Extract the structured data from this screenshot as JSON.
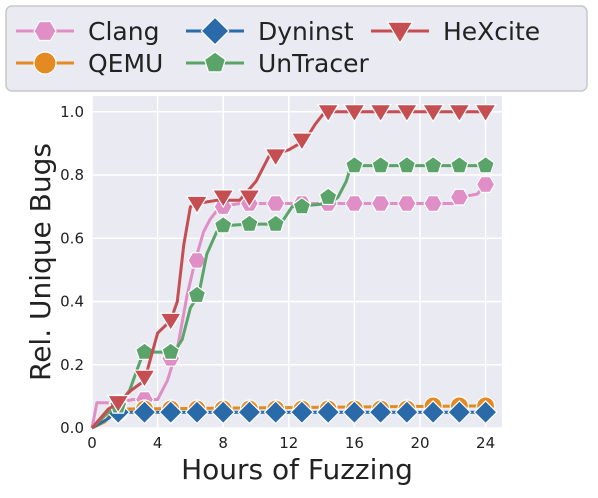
{
  "chart_data": {
    "type": "line",
    "xlabel": "Hours of Fuzzing",
    "ylabel": "Rel. Unique Bugs",
    "xlim": [
      0,
      25
    ],
    "ylim": [
      0,
      1.05
    ],
    "xticks": [
      0,
      4,
      8,
      12,
      16,
      20,
      24
    ],
    "yticks": [
      0.0,
      0.2,
      0.4,
      0.6,
      0.8,
      1.0
    ],
    "xtick_labels": [
      "0",
      "4",
      "8",
      "12",
      "16",
      "20",
      "24"
    ],
    "ytick_labels": [
      "0.0",
      "0.2",
      "0.4",
      "0.6",
      "0.8",
      "1.0"
    ],
    "grid": true,
    "legend_position": "top",
    "series": [
      {
        "name": "Clang",
        "color": "#e08fc6",
        "marker": "hexagon",
        "line": [
          [
            0,
            0.0
          ],
          [
            0.3,
            0.08
          ],
          [
            1.5,
            0.08
          ],
          [
            2.5,
            0.09
          ],
          [
            4.0,
            0.09
          ],
          [
            4.6,
            0.15
          ],
          [
            5.2,
            0.25
          ],
          [
            5.8,
            0.42
          ],
          [
            6.3,
            0.53
          ],
          [
            6.8,
            0.62
          ],
          [
            7.2,
            0.66
          ],
          [
            7.8,
            0.7
          ],
          [
            9.0,
            0.71
          ],
          [
            12.0,
            0.71
          ],
          [
            14.0,
            0.71
          ],
          [
            16.0,
            0.71
          ],
          [
            22.0,
            0.71
          ],
          [
            22.5,
            0.73
          ],
          [
            23.5,
            0.74
          ],
          [
            24.0,
            0.77
          ]
        ],
        "markers": [
          [
            1.6,
            0.08
          ],
          [
            3.2,
            0.09
          ],
          [
            4.8,
            0.22
          ],
          [
            6.4,
            0.53
          ],
          [
            8.0,
            0.7
          ],
          [
            9.6,
            0.71
          ],
          [
            11.2,
            0.71
          ],
          [
            12.8,
            0.71
          ],
          [
            14.4,
            0.71
          ],
          [
            16.0,
            0.71
          ],
          [
            17.6,
            0.71
          ],
          [
            19.2,
            0.71
          ],
          [
            20.8,
            0.71
          ],
          [
            22.4,
            0.73
          ],
          [
            24.0,
            0.77
          ]
        ]
      },
      {
        "name": "QEMU",
        "color": "#e38a23",
        "marker": "circle",
        "line": [
          [
            0,
            0.0
          ],
          [
            0.8,
            0.02
          ],
          [
            1.2,
            0.05
          ],
          [
            2.0,
            0.06
          ],
          [
            24.0,
            0.07
          ]
        ],
        "markers": [
          [
            1.6,
            0.05
          ],
          [
            3.2,
            0.06
          ],
          [
            4.8,
            0.06
          ],
          [
            6.4,
            0.06
          ],
          [
            8.0,
            0.06
          ],
          [
            9.6,
            0.06
          ],
          [
            11.2,
            0.06
          ],
          [
            12.8,
            0.06
          ],
          [
            14.4,
            0.06
          ],
          [
            16.0,
            0.06
          ],
          [
            17.6,
            0.06
          ],
          [
            19.2,
            0.06
          ],
          [
            20.8,
            0.07
          ],
          [
            22.4,
            0.07
          ],
          [
            24.0,
            0.07
          ]
        ]
      },
      {
        "name": "Dyninst",
        "color": "#2a6aa8",
        "marker": "diamond",
        "line": [
          [
            0,
            0.0
          ],
          [
            1.0,
            0.03
          ],
          [
            1.4,
            0.05
          ],
          [
            24.0,
            0.05
          ]
        ],
        "markers": [
          [
            1.6,
            0.05
          ],
          [
            3.2,
            0.05
          ],
          [
            4.8,
            0.05
          ],
          [
            6.4,
            0.05
          ],
          [
            8.0,
            0.05
          ],
          [
            9.6,
            0.05
          ],
          [
            11.2,
            0.05
          ],
          [
            12.8,
            0.05
          ],
          [
            14.4,
            0.05
          ],
          [
            16.0,
            0.05
          ],
          [
            17.6,
            0.05
          ],
          [
            19.2,
            0.05
          ],
          [
            20.8,
            0.05
          ],
          [
            22.4,
            0.05
          ],
          [
            24.0,
            0.05
          ]
        ]
      },
      {
        "name": "UnTracer",
        "color": "#5aa469",
        "marker": "pentagon",
        "line": [
          [
            0,
            0.0
          ],
          [
            1.0,
            0.05
          ],
          [
            1.5,
            0.06
          ],
          [
            2.3,
            0.12
          ],
          [
            3.0,
            0.22
          ],
          [
            3.4,
            0.24
          ],
          [
            5.0,
            0.24
          ],
          [
            5.5,
            0.28
          ],
          [
            6.0,
            0.38
          ],
          [
            6.5,
            0.42
          ],
          [
            7.0,
            0.55
          ],
          [
            7.6,
            0.62
          ],
          [
            8.2,
            0.64
          ],
          [
            9.5,
            0.645
          ],
          [
            11.5,
            0.645
          ],
          [
            12.2,
            0.7
          ],
          [
            14.5,
            0.71
          ],
          [
            15.0,
            0.73
          ],
          [
            15.5,
            0.78
          ],
          [
            15.8,
            0.83
          ],
          [
            24.0,
            0.83
          ]
        ],
        "markers": [
          [
            1.6,
            0.07
          ],
          [
            3.2,
            0.24
          ],
          [
            4.8,
            0.24
          ],
          [
            6.4,
            0.42
          ],
          [
            8.0,
            0.64
          ],
          [
            9.6,
            0.645
          ],
          [
            11.2,
            0.645
          ],
          [
            12.8,
            0.7
          ],
          [
            14.4,
            0.73
          ],
          [
            16.0,
            0.83
          ],
          [
            17.6,
            0.83
          ],
          [
            19.2,
            0.83
          ],
          [
            20.8,
            0.83
          ],
          [
            22.4,
            0.83
          ],
          [
            24.0,
            0.83
          ]
        ]
      },
      {
        "name": "HeXcite",
        "color": "#c44e52",
        "marker": "triangle-down",
        "line": [
          [
            0,
            0.0
          ],
          [
            1.0,
            0.06
          ],
          [
            1.6,
            0.08
          ],
          [
            2.4,
            0.12
          ],
          [
            3.2,
            0.15
          ],
          [
            4.0,
            0.3
          ],
          [
            4.8,
            0.34
          ],
          [
            5.2,
            0.4
          ],
          [
            5.6,
            0.58
          ],
          [
            6.0,
            0.7
          ],
          [
            6.4,
            0.71
          ],
          [
            7.6,
            0.72
          ],
          [
            9.0,
            0.72
          ],
          [
            10.0,
            0.78
          ],
          [
            10.8,
            0.86
          ],
          [
            12.0,
            0.88
          ],
          [
            13.0,
            0.91
          ],
          [
            13.6,
            0.96
          ],
          [
            14.2,
            1.0
          ],
          [
            24.0,
            1.0
          ]
        ],
        "markers": [
          [
            1.6,
            0.08
          ],
          [
            3.2,
            0.16
          ],
          [
            4.8,
            0.34
          ],
          [
            6.4,
            0.71
          ],
          [
            8.0,
            0.73
          ],
          [
            9.6,
            0.73
          ],
          [
            11.2,
            0.86
          ],
          [
            12.8,
            0.91
          ],
          [
            14.4,
            1.0
          ],
          [
            16.0,
            1.0
          ],
          [
            17.6,
            1.0
          ],
          [
            19.2,
            1.0
          ],
          [
            20.8,
            1.0
          ],
          [
            22.4,
            1.0
          ],
          [
            24.0,
            1.0
          ]
        ]
      }
    ]
  }
}
